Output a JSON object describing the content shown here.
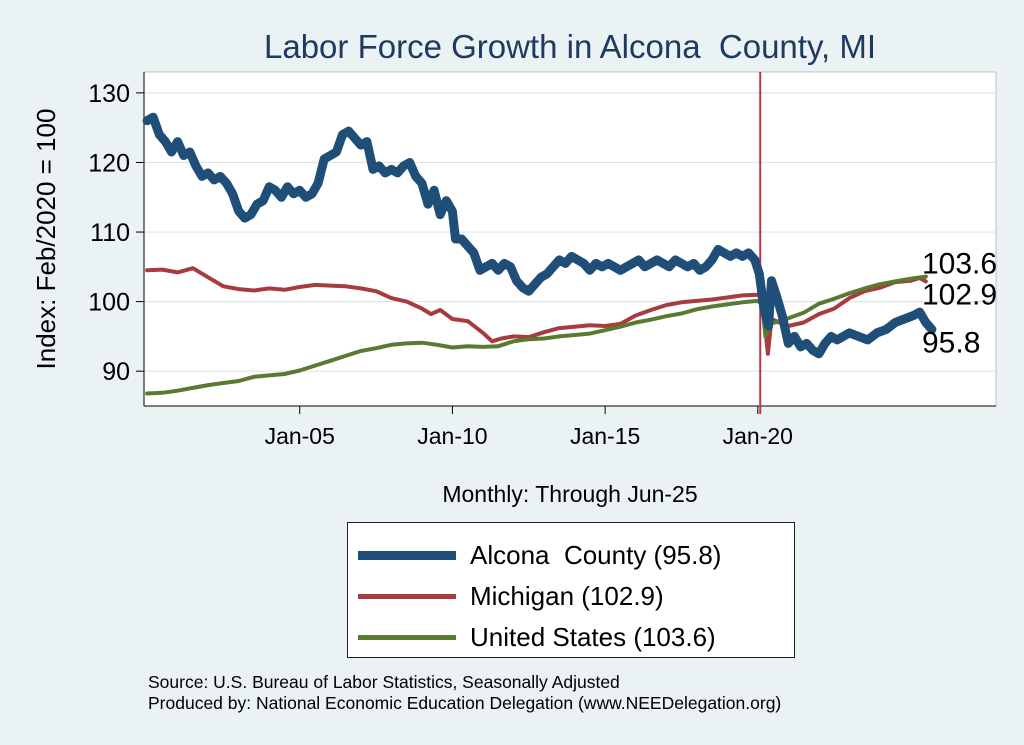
{
  "chart_data": {
    "type": "line",
    "title": "Labor Force Growth in Alcona  County, MI",
    "xlabel": "Monthly: Through Jun-25",
    "ylabel": "Index: Feb/2020 = 100",
    "ylim": [
      85,
      133
    ],
    "xlim": [
      1999.9,
      2027.8
    ],
    "yticks": [
      90,
      100,
      110,
      120,
      130
    ],
    "xticks": [
      {
        "x": 2005,
        "label": "Jan-05"
      },
      {
        "x": 2010,
        "label": "Jan-10"
      },
      {
        "x": 2015,
        "label": "Jan-15"
      },
      {
        "x": 2020,
        "label": "Jan-20"
      }
    ],
    "reference_line_x": 2020.08,
    "grid": "horizontal",
    "legend_position": "bottom",
    "series": [
      {
        "name": "Alcona  County (95.8)",
        "color": "#1f4e79",
        "end_label": "95.8",
        "points": [
          [
            2000.0,
            126
          ],
          [
            2000.2,
            126.5
          ],
          [
            2000.4,
            124
          ],
          [
            2000.6,
            123
          ],
          [
            2000.8,
            121.5
          ],
          [
            2001.0,
            123
          ],
          [
            2001.2,
            121
          ],
          [
            2001.4,
            121.5
          ],
          [
            2001.6,
            119.5
          ],
          [
            2001.8,
            118
          ],
          [
            2002.0,
            118.5
          ],
          [
            2002.2,
            117.5
          ],
          [
            2002.4,
            118
          ],
          [
            2002.6,
            117
          ],
          [
            2002.8,
            115.5
          ],
          [
            2003.0,
            113
          ],
          [
            2003.2,
            112
          ],
          [
            2003.4,
            112.5
          ],
          [
            2003.6,
            114
          ],
          [
            2003.8,
            114.5
          ],
          [
            2004.0,
            116.5
          ],
          [
            2004.2,
            116
          ],
          [
            2004.4,
            115
          ],
          [
            2004.6,
            116.5
          ],
          [
            2004.8,
            115.5
          ],
          [
            2005.0,
            116
          ],
          [
            2005.2,
            115
          ],
          [
            2005.4,
            115.5
          ],
          [
            2005.6,
            117
          ],
          [
            2005.8,
            120.5
          ],
          [
            2006.0,
            121
          ],
          [
            2006.2,
            121.5
          ],
          [
            2006.4,
            124
          ],
          [
            2006.6,
            124.5
          ],
          [
            2006.8,
            123.5
          ],
          [
            2007.0,
            122.5
          ],
          [
            2007.2,
            123
          ],
          [
            2007.4,
            119
          ],
          [
            2007.6,
            119.5
          ],
          [
            2007.8,
            118.5
          ],
          [
            2008.0,
            119
          ],
          [
            2008.2,
            118.5
          ],
          [
            2008.4,
            119.5
          ],
          [
            2008.6,
            120
          ],
          [
            2008.8,
            118
          ],
          [
            2009.0,
            117
          ],
          [
            2009.2,
            114
          ],
          [
            2009.4,
            116
          ],
          [
            2009.6,
            112.5
          ],
          [
            2009.8,
            114.5
          ],
          [
            2010.0,
            113
          ],
          [
            2010.1,
            109
          ],
          [
            2010.3,
            109
          ],
          [
            2010.5,
            108
          ],
          [
            2010.7,
            107
          ],
          [
            2010.9,
            104.5
          ],
          [
            2011.1,
            105
          ],
          [
            2011.3,
            105.5
          ],
          [
            2011.5,
            104.5
          ],
          [
            2011.7,
            105.5
          ],
          [
            2011.9,
            105
          ],
          [
            2012.1,
            103
          ],
          [
            2012.3,
            102
          ],
          [
            2012.5,
            101.5
          ],
          [
            2012.7,
            102.5
          ],
          [
            2012.9,
            103.5
          ],
          [
            2013.1,
            104
          ],
          [
            2013.3,
            105
          ],
          [
            2013.5,
            106
          ],
          [
            2013.7,
            105.5
          ],
          [
            2013.9,
            106.5
          ],
          [
            2014.1,
            106
          ],
          [
            2014.3,
            105.5
          ],
          [
            2014.5,
            104.5
          ],
          [
            2014.7,
            105.5
          ],
          [
            2014.9,
            105
          ],
          [
            2015.1,
            105.5
          ],
          [
            2015.3,
            105
          ],
          [
            2015.5,
            104.5
          ],
          [
            2015.7,
            105
          ],
          [
            2015.9,
            105.5
          ],
          [
            2016.1,
            106
          ],
          [
            2016.3,
            105
          ],
          [
            2016.5,
            105.5
          ],
          [
            2016.7,
            106
          ],
          [
            2016.9,
            105.5
          ],
          [
            2017.1,
            105
          ],
          [
            2017.3,
            106
          ],
          [
            2017.5,
            105.5
          ],
          [
            2017.7,
            105
          ],
          [
            2017.9,
            105.5
          ],
          [
            2018.1,
            104.5
          ],
          [
            2018.3,
            105
          ],
          [
            2018.5,
            106
          ],
          [
            2018.7,
            107.5
          ],
          [
            2018.9,
            107
          ],
          [
            2019.1,
            106.5
          ],
          [
            2019.3,
            107
          ],
          [
            2019.5,
            106.5
          ],
          [
            2019.7,
            107
          ],
          [
            2019.9,
            106
          ],
          [
            2020.05,
            104
          ],
          [
            2020.2,
            99
          ],
          [
            2020.35,
            96.5
          ],
          [
            2020.45,
            103
          ],
          [
            2020.6,
            101
          ],
          [
            2020.8,
            98
          ],
          [
            2021.0,
            94
          ],
          [
            2021.2,
            95
          ],
          [
            2021.4,
            93.5
          ],
          [
            2021.6,
            94
          ],
          [
            2021.8,
            93
          ],
          [
            2022.0,
            92.5
          ],
          [
            2022.2,
            94
          ],
          [
            2022.4,
            95
          ],
          [
            2022.6,
            94.5
          ],
          [
            2022.8,
            95
          ],
          [
            2023.0,
            95.5
          ],
          [
            2023.3,
            95
          ],
          [
            2023.6,
            94.5
          ],
          [
            2023.9,
            95.5
          ],
          [
            2024.2,
            96
          ],
          [
            2024.5,
            97
          ],
          [
            2024.8,
            97.5
          ],
          [
            2025.1,
            98
          ],
          [
            2025.3,
            98.5
          ],
          [
            2025.5,
            97
          ],
          [
            2025.7,
            96
          ]
        ]
      },
      {
        "name": "Michigan (102.9)",
        "color": "#a83b3f",
        "end_label": "102.9",
        "points": [
          [
            2000.0,
            104.5
          ],
          [
            2000.5,
            104.6
          ],
          [
            2001.0,
            104.2
          ],
          [
            2001.5,
            104.8
          ],
          [
            2002.0,
            103.5
          ],
          [
            2002.5,
            102.2
          ],
          [
            2003.0,
            101.8
          ],
          [
            2003.5,
            101.6
          ],
          [
            2004.0,
            101.9
          ],
          [
            2004.5,
            101.7
          ],
          [
            2005.0,
            102.1
          ],
          [
            2005.5,
            102.4
          ],
          [
            2006.0,
            102.3
          ],
          [
            2006.5,
            102.2
          ],
          [
            2007.0,
            101.9
          ],
          [
            2007.5,
            101.5
          ],
          [
            2008.0,
            100.5
          ],
          [
            2008.5,
            100
          ],
          [
            2009.0,
            99
          ],
          [
            2009.3,
            98.2
          ],
          [
            2009.6,
            98.8
          ],
          [
            2010.0,
            97.5
          ],
          [
            2010.5,
            97.2
          ],
          [
            2011.0,
            95.5
          ],
          [
            2011.3,
            94.3
          ],
          [
            2011.6,
            94.7
          ],
          [
            2012.0,
            95
          ],
          [
            2012.5,
            94.9
          ],
          [
            2013.0,
            95.6
          ],
          [
            2013.5,
            96.2
          ],
          [
            2014.0,
            96.4
          ],
          [
            2014.5,
            96.6
          ],
          [
            2015.0,
            96.5
          ],
          [
            2015.5,
            96.8
          ],
          [
            2016.0,
            98
          ],
          [
            2016.5,
            98.8
          ],
          [
            2017.0,
            99.5
          ],
          [
            2017.5,
            99.9
          ],
          [
            2018.0,
            100.1
          ],
          [
            2018.5,
            100.3
          ],
          [
            2019.0,
            100.6
          ],
          [
            2019.5,
            100.9
          ],
          [
            2020.0,
            101
          ],
          [
            2020.15,
            100.4
          ],
          [
            2020.25,
            96
          ],
          [
            2020.33,
            92.5
          ],
          [
            2020.45,
            97.5
          ],
          [
            2020.7,
            97
          ],
          [
            2021.0,
            96.5
          ],
          [
            2021.5,
            97
          ],
          [
            2022.0,
            98.2
          ],
          [
            2022.5,
            99
          ],
          [
            2023.0,
            100.5
          ],
          [
            2023.5,
            101.5
          ],
          [
            2024.0,
            102
          ],
          [
            2024.5,
            102.8
          ],
          [
            2025.0,
            103
          ],
          [
            2025.3,
            103.4
          ],
          [
            2025.5,
            102.9
          ]
        ]
      },
      {
        "name": "United States (103.6)",
        "color": "#5a7a32",
        "end_label": "103.6",
        "points": [
          [
            2000.0,
            86.8
          ],
          [
            2000.5,
            86.9
          ],
          [
            2001.0,
            87.2
          ],
          [
            2001.5,
            87.6
          ],
          [
            2002.0,
            88
          ],
          [
            2002.5,
            88.3
          ],
          [
            2003.0,
            88.6
          ],
          [
            2003.5,
            89.2
          ],
          [
            2004.0,
            89.4
          ],
          [
            2004.5,
            89.6
          ],
          [
            2005.0,
            90.1
          ],
          [
            2005.5,
            90.8
          ],
          [
            2006.0,
            91.5
          ],
          [
            2006.5,
            92.2
          ],
          [
            2007.0,
            92.9
          ],
          [
            2007.5,
            93.3
          ],
          [
            2008.0,
            93.8
          ],
          [
            2008.5,
            94
          ],
          [
            2009.0,
            94.1
          ],
          [
            2009.5,
            93.8
          ],
          [
            2010.0,
            93.4
          ],
          [
            2010.5,
            93.6
          ],
          [
            2011.0,
            93.5
          ],
          [
            2011.5,
            93.6
          ],
          [
            2012.0,
            94.3
          ],
          [
            2012.5,
            94.6
          ],
          [
            2013.0,
            94.7
          ],
          [
            2013.5,
            95
          ],
          [
            2014.0,
            95.2
          ],
          [
            2014.5,
            95.4
          ],
          [
            2015.0,
            95.9
          ],
          [
            2015.5,
            96.4
          ],
          [
            2016.0,
            97
          ],
          [
            2016.5,
            97.4
          ],
          [
            2017.0,
            97.9
          ],
          [
            2017.5,
            98.3
          ],
          [
            2018.0,
            98.9
          ],
          [
            2018.5,
            99.3
          ],
          [
            2019.0,
            99.6
          ],
          [
            2019.5,
            99.9
          ],
          [
            2020.0,
            100.1
          ],
          [
            2020.15,
            99.6
          ],
          [
            2020.25,
            95
          ],
          [
            2020.4,
            96.8
          ],
          [
            2020.7,
            97.2
          ],
          [
            2021.0,
            97.6
          ],
          [
            2021.5,
            98.4
          ],
          [
            2022.0,
            99.7
          ],
          [
            2022.5,
            100.4
          ],
          [
            2023.0,
            101.2
          ],
          [
            2023.5,
            101.9
          ],
          [
            2024.0,
            102.5
          ],
          [
            2024.5,
            102.9
          ],
          [
            2025.0,
            103.3
          ],
          [
            2025.5,
            103.6
          ]
        ]
      }
    ]
  },
  "source_lines": [
    "Source: U.S. Bureau of Labor Statistics, Seasonally Adjusted",
    "Produced by: National Economic Education Delegation (www.NEEDelegation.org)"
  ]
}
